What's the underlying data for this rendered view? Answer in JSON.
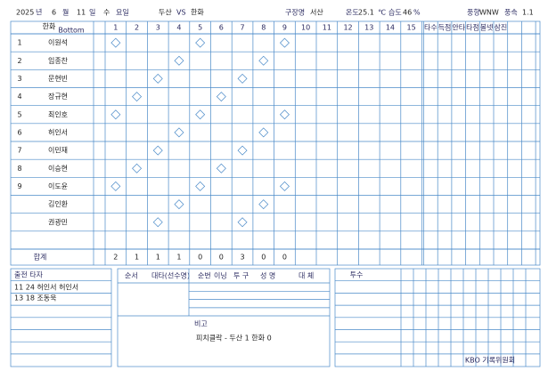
{
  "header": {
    "year": "2025",
    "year_label": "년",
    "month": "6",
    "month_label": "월",
    "day": "11",
    "day_label": "일",
    "weekday": "수",
    "weekday_label": "요일",
    "away": "두산",
    "vs": "VS",
    "home": "한화",
    "stadium_label": "구장명",
    "stadium": "서산",
    "temp_label": "온도",
    "temp": "25.1",
    "temp_unit": "℃",
    "humidity_label": "습도",
    "humidity": "46",
    "humidity_unit": "%",
    "wind_label": "풍향",
    "wind": "WNW",
    "speed_label": "풍속",
    "speed": "1.1"
  },
  "team": "한화",
  "side_label": "Bottom",
  "innings": [
    "1",
    "2",
    "3",
    "4",
    "5",
    "6",
    "7",
    "8",
    "9",
    "10",
    "11",
    "12",
    "13",
    "14",
    "15"
  ],
  "stat_headers": [
    "타수",
    "득점",
    "안타",
    "타점",
    "볼넷",
    "삼진"
  ],
  "batters": [
    {
      "order": "1",
      "name": "이원석"
    },
    {
      "order": "2",
      "name": "임종찬"
    },
    {
      "order": "3",
      "name": "문현빈"
    },
    {
      "order": "4",
      "name": "장규현"
    },
    {
      "order": "5",
      "name": "최인호"
    },
    {
      "order": "6",
      "name": "허인서"
    },
    {
      "order": "7",
      "name": "이민재"
    },
    {
      "order": "8",
      "name": "이승현"
    },
    {
      "order": "9",
      "name": "이도윤"
    },
    {
      "order": "",
      "name": "김인환"
    },
    {
      "order": "",
      "name": "권광민"
    }
  ],
  "innings_runs": [
    "2",
    "1",
    "1",
    "1",
    "0",
    "0",
    "3",
    "0",
    "0"
  ],
  "total_label": "합계",
  "bottom": {
    "left_title": "출전 타자",
    "left_entries": [
      "11 24 허인서 허인서",
      "13 18 조동욱"
    ],
    "middle_headers": [
      "순서",
      "대타(선수명)",
      "순번",
      "이닝",
      "투 구",
      "성 명",
      "대 체"
    ],
    "remark_label": "비고",
    "remark": "피치클락 - 두산 1 한화 0",
    "pitcher_header": "투수",
    "logo": "KBO 기록위원회"
  }
}
